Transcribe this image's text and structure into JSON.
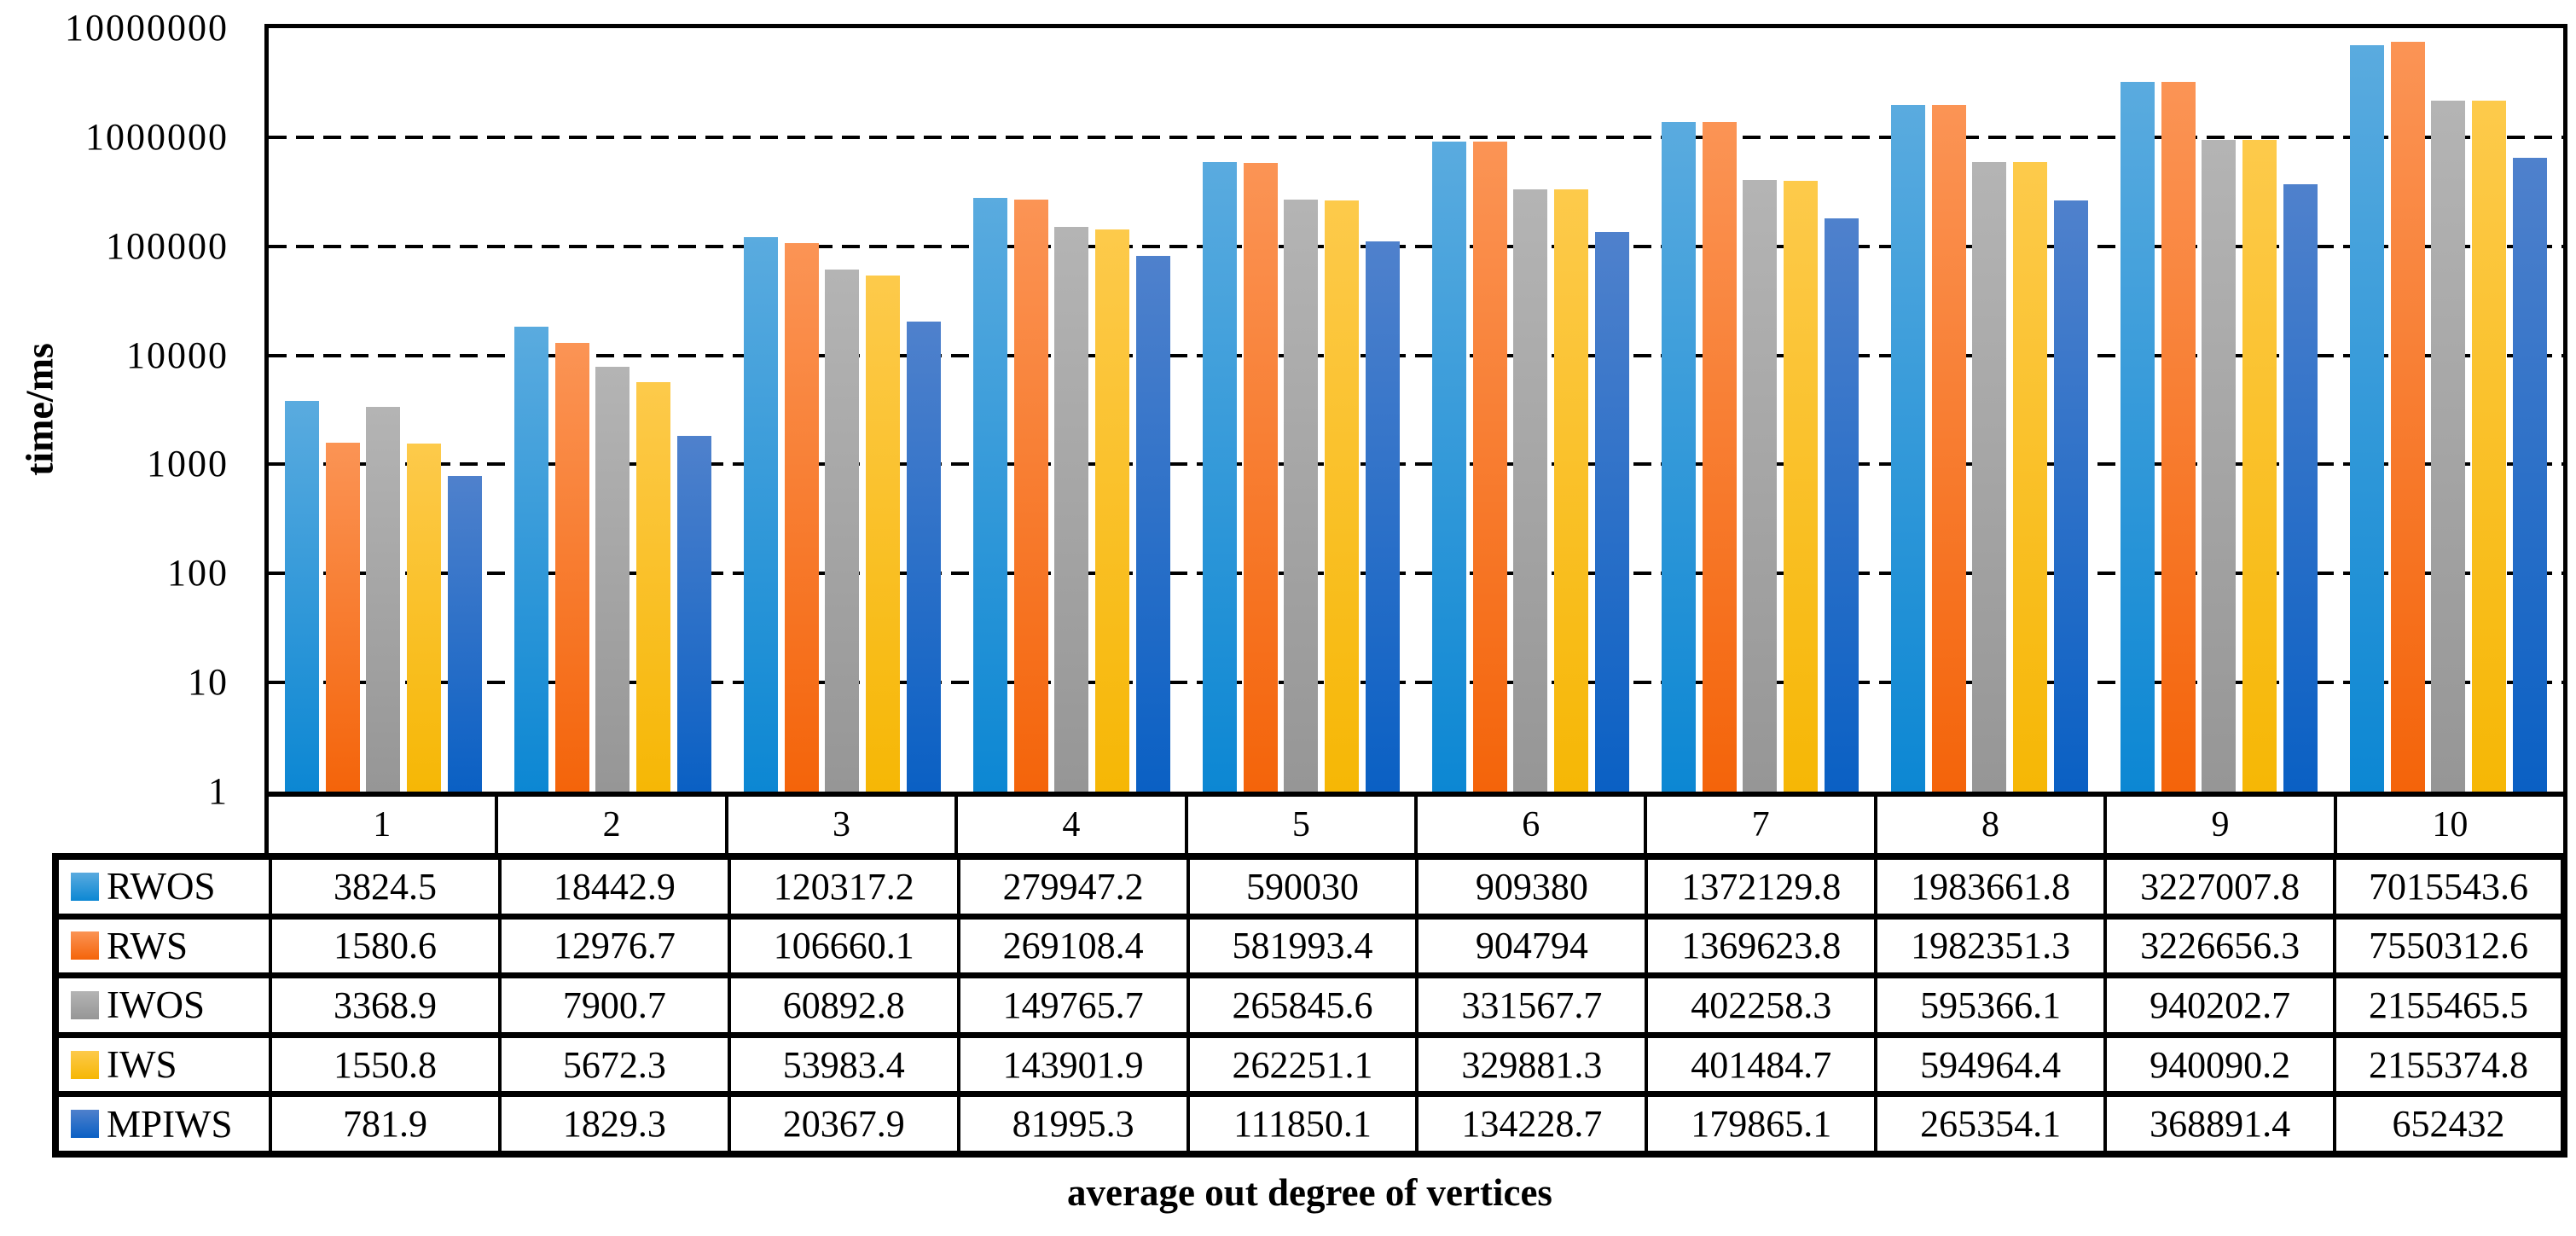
{
  "chart_data": {
    "type": "bar",
    "ylabel": "time/ms",
    "xlabel": "average out degree of vertices",
    "y_scale": "log10",
    "ylim": [
      1,
      10000000
    ],
    "y_tick_labels": [
      "10000000",
      "1000000",
      "100000",
      "10000",
      "1000",
      "100",
      "10",
      "1"
    ],
    "grid": "horizontal-dashed",
    "gridline_color": "#000000",
    "legend_position": "table-left-column",
    "categories": [
      "1",
      "2",
      "3",
      "4",
      "5",
      "6",
      "7",
      "8",
      "9",
      "10"
    ],
    "series": [
      {
        "name": "RWOS",
        "color_top": "#5aabdf",
        "color_bottom": "#0c87d3",
        "values": [
          3824.5,
          18442.9,
          120317.2,
          279947.2,
          590030,
          909380,
          1372129.8,
          1983661.8,
          3227007.8,
          7015543.6
        ]
      },
      {
        "name": "RWS",
        "color_top": "#fb9455",
        "color_bottom": "#f4640a",
        "values": [
          1580.6,
          12976.7,
          106660.1,
          269108.4,
          581993.4,
          904794,
          1369623.8,
          1982351.3,
          3226656.3,
          7550312.6
        ]
      },
      {
        "name": "IWOS",
        "color_top": "#b4b4b4",
        "color_bottom": "#969696",
        "values": [
          3368.9,
          7900.7,
          60892.8,
          149765.7,
          265845.6,
          331567.7,
          402258.3,
          595366.1,
          940202.7,
          2155465.5
        ]
      },
      {
        "name": "IWS",
        "color_top": "#fdca4b",
        "color_bottom": "#f6b705",
        "values": [
          1550.8,
          5672.3,
          53983.4,
          143901.9,
          262251.1,
          329881.3,
          401484.7,
          594964.4,
          940090.2,
          2155374.8
        ]
      },
      {
        "name": "MPIWS",
        "color_top": "#4f81cc",
        "color_bottom": "#0a60c4",
        "values": [
          781.9,
          1829.3,
          20367.9,
          81995.3,
          111850.1,
          134228.7,
          179865.1,
          265354.1,
          368891.4,
          652432
        ]
      }
    ]
  }
}
